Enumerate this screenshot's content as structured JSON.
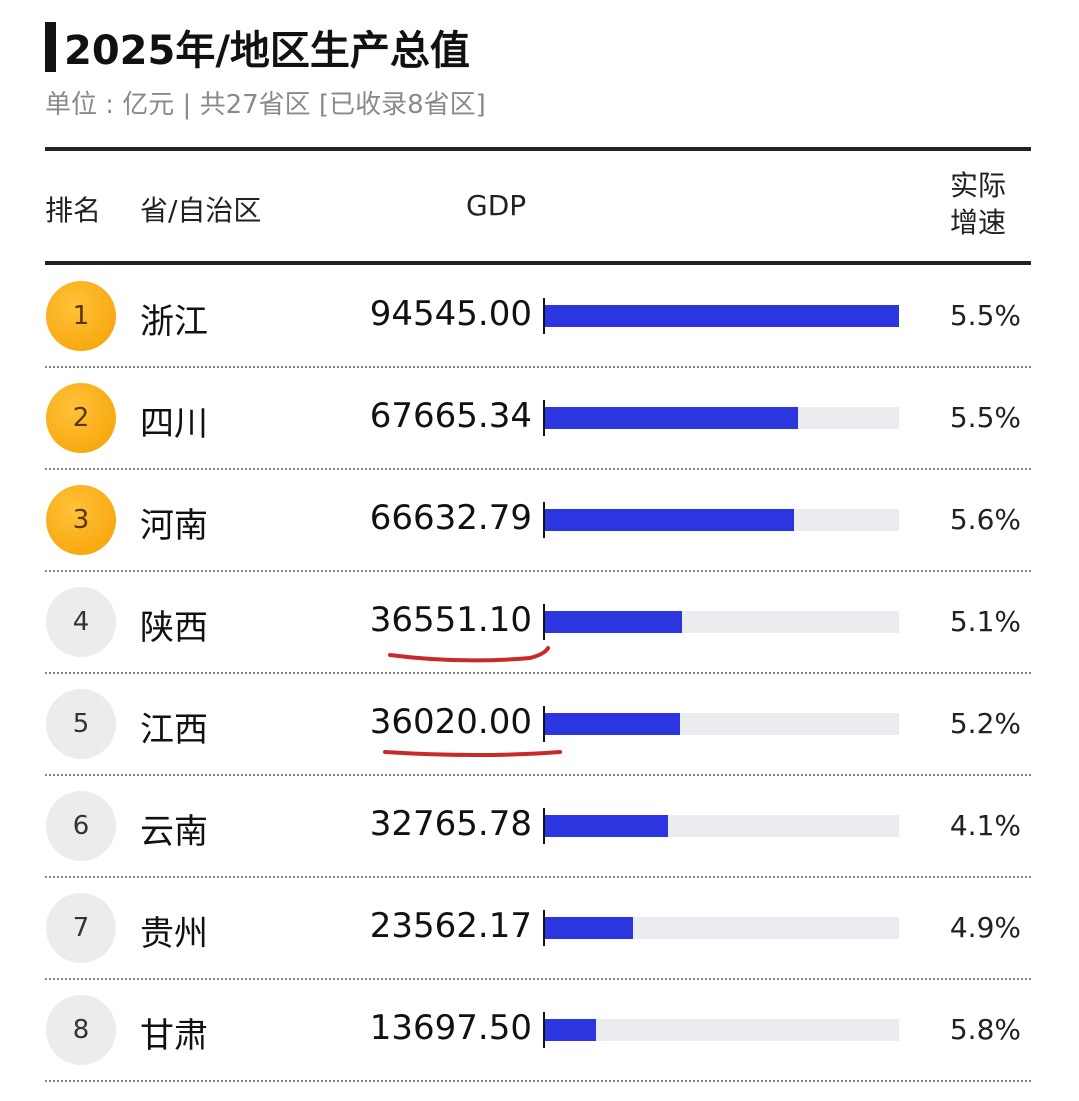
{
  "header": {
    "title": "2025年/地区生产总值",
    "subtitle": "单位 : 亿元 | 共27省区 [已收录8省区]"
  },
  "table": {
    "columns": [
      "排名",
      "省/自治区",
      "GDP",
      "实际增速"
    ],
    "rows": [
      {
        "rank": "1",
        "region": "浙江",
        "gdp": {
          "value": 94545.0,
          "label": "94545.00"
        },
        "growth": "5.5%"
      },
      {
        "rank": "2",
        "region": "四川",
        "gdp": {
          "value": 67665.34,
          "label": "67665.34"
        },
        "growth": "5.5%"
      },
      {
        "rank": "3",
        "region": "河南",
        "gdp": {
          "value": 66632.79,
          "label": "66632.79"
        },
        "growth": "5.6%"
      },
      {
        "rank": "4",
        "region": "陕西",
        "gdp": {
          "value": 36551.1,
          "label": "36551.10"
        },
        "growth": "5.1%"
      },
      {
        "rank": "5",
        "region": "江西",
        "gdp": {
          "value": 36020.0,
          "label": "36020.00"
        },
        "growth": "5.2%"
      },
      {
        "rank": "6",
        "region": "云南",
        "gdp": {
          "value": 32765.78,
          "label": "32765.78"
        },
        "growth": "4.1%"
      },
      {
        "rank": "7",
        "region": "贵州",
        "gdp": {
          "value": 23562.17,
          "label": "23562.17"
        },
        "growth": "4.9%"
      },
      {
        "rank": "8",
        "region": "甘肃",
        "gdp": {
          "value": 13697.5,
          "label": "13697.50"
        },
        "growth": "5.8%"
      }
    ],
    "bar_color": "#2b35e0"
  }
}
